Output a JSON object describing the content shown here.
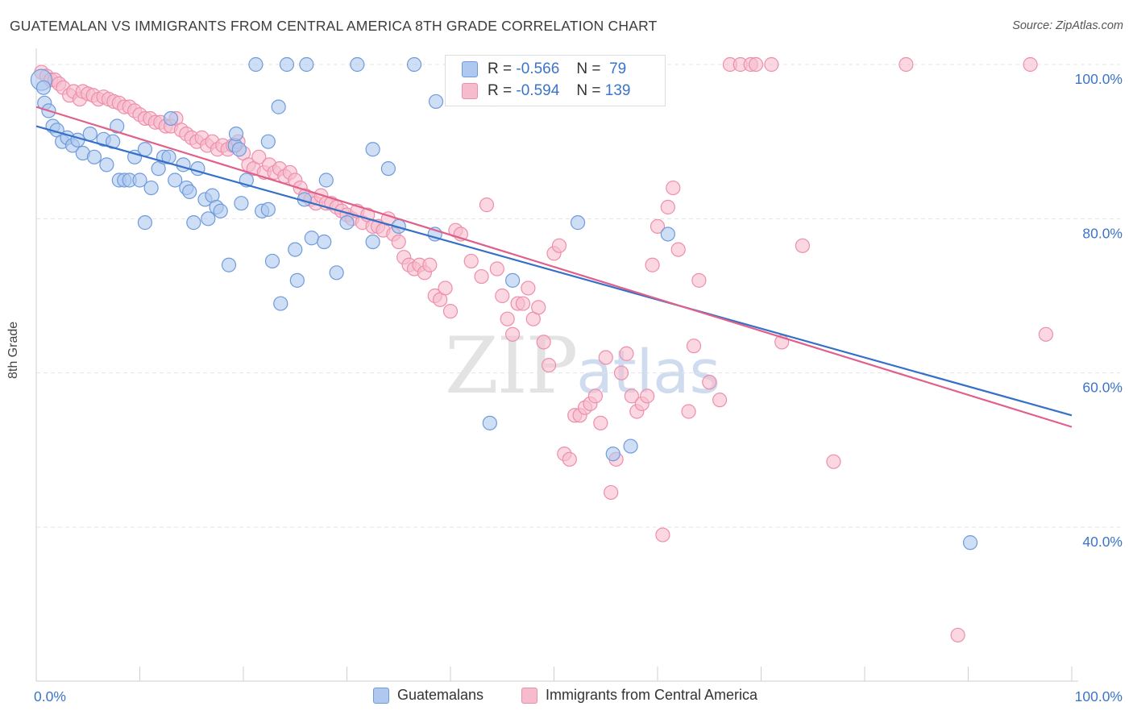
{
  "title": "GUATEMALAN VS IMMIGRANTS FROM CENTRAL AMERICA 8TH GRADE CORRELATION CHART",
  "source": "Source: ZipAtlas.com",
  "watermark_zip": "ZIP",
  "watermark_atlas": "atlas",
  "legend": {
    "r_label": "R =",
    "n_label": "N =",
    "series": [
      {
        "r": "-0.566",
        "n": "79"
      },
      {
        "r": "-0.594",
        "n": "139"
      }
    ]
  },
  "bottom_legend": [
    "Guatemalans",
    "Immigrants from Central America"
  ],
  "colors": {
    "blue_fill": "#aec8ef",
    "blue_stroke": "#6f9bdc",
    "blue_line": "#3470c8",
    "pink_fill": "#f6bccd",
    "pink_stroke": "#ee8eab",
    "pink_line": "#e0608a",
    "tick_text": "#3b74c8"
  },
  "chart_data": {
    "type": "scatter",
    "title": "GUATEMALAN VS IMMIGRANTS FROM CENTRAL AMERICA 8TH GRADE CORRELATION CHART",
    "xlabel": "",
    "ylabel": "8th Grade",
    "xlim": [
      0,
      100
    ],
    "ylim": [
      20,
      104
    ],
    "x_tick_labels": [
      "0.0%",
      "100.0%"
    ],
    "y_ticks": [
      40,
      60,
      80,
      100
    ],
    "y_tick_labels": [
      "40.0%",
      "60.0%",
      "80.0%",
      "100.0%"
    ],
    "grid": true,
    "series": [
      {
        "name": "Guatemalans",
        "points": [
          [
            0.5,
            98
          ],
          [
            0.7,
            97
          ],
          [
            0.8,
            95
          ],
          [
            1.2,
            94
          ],
          [
            1.6,
            92
          ],
          [
            2.0,
            91.5
          ],
          [
            2.5,
            90
          ],
          [
            3.0,
            90.5
          ],
          [
            3.5,
            89.5
          ],
          [
            4.0,
            90.2
          ],
          [
            4.5,
            88.5
          ],
          [
            5.2,
            91
          ],
          [
            5.6,
            88
          ],
          [
            6.5,
            90.3
          ],
          [
            6.8,
            87
          ],
          [
            7.4,
            90
          ],
          [
            7.8,
            92
          ],
          [
            8.0,
            85
          ],
          [
            8.5,
            85
          ],
          [
            9.0,
            85
          ],
          [
            9.5,
            88
          ],
          [
            10,
            85
          ],
          [
            10.5,
            89
          ],
          [
            10.5,
            79.5
          ],
          [
            11.1,
            84
          ],
          [
            11.8,
            86.5
          ],
          [
            12.3,
            88
          ],
          [
            12.8,
            88
          ],
          [
            13,
            93
          ],
          [
            13.4,
            85
          ],
          [
            14.2,
            87
          ],
          [
            14.5,
            84
          ],
          [
            14.8,
            83.5
          ],
          [
            15.2,
            79.5
          ],
          [
            15.6,
            86.5
          ],
          [
            16.3,
            82.5
          ],
          [
            16.6,
            80
          ],
          [
            17,
            83
          ],
          [
            17.4,
            81.5
          ],
          [
            17.8,
            81
          ],
          [
            18.6,
            74
          ],
          [
            19.2,
            89.5
          ],
          [
            19.6,
            89
          ],
          [
            19.3,
            91
          ],
          [
            19.8,
            82
          ],
          [
            20.3,
            85
          ],
          [
            21.2,
            100
          ],
          [
            21.8,
            81
          ],
          [
            22.4,
            81.2
          ],
          [
            22.4,
            90
          ],
          [
            22.8,
            74.5
          ],
          [
            23.4,
            94.5
          ],
          [
            23.6,
            69
          ],
          [
            24.2,
            100
          ],
          [
            25,
            76
          ],
          [
            25.2,
            72
          ],
          [
            25.9,
            82.5
          ],
          [
            26.1,
            100
          ],
          [
            26.6,
            77.5
          ],
          [
            27.8,
            77
          ],
          [
            28,
            85
          ],
          [
            29,
            73
          ],
          [
            30,
            79.5
          ],
          [
            31,
            100
          ],
          [
            32.5,
            77
          ],
          [
            32.5,
            89
          ],
          [
            34,
            86.5
          ],
          [
            35,
            79
          ],
          [
            36.5,
            100
          ],
          [
            38.5,
            78
          ],
          [
            38.6,
            95.2
          ],
          [
            43.8,
            53.5
          ],
          [
            44,
            95.5
          ],
          [
            46,
            72
          ],
          [
            52.3,
            79.5
          ],
          [
            55.7,
            49.5
          ],
          [
            57.4,
            50.5
          ],
          [
            61,
            78
          ],
          [
            90.2,
            38
          ]
        ]
      },
      {
        "name": "Immigrants from Central America",
        "points": [
          [
            0.5,
            99
          ],
          [
            1.0,
            98.5
          ],
          [
            1.4,
            98
          ],
          [
            1.8,
            98
          ],
          [
            2.2,
            97.5
          ],
          [
            2.6,
            97
          ],
          [
            3.2,
            96
          ],
          [
            3.6,
            96.5
          ],
          [
            4.2,
            95.5
          ],
          [
            4.5,
            96.5
          ],
          [
            5.0,
            96.2
          ],
          [
            5.5,
            96
          ],
          [
            6.0,
            95.5
          ],
          [
            6.5,
            95.8
          ],
          [
            7.0,
            95.5
          ],
          [
            7.5,
            95.2
          ],
          [
            8.0,
            95
          ],
          [
            8.5,
            94.5
          ],
          [
            9.0,
            94.5
          ],
          [
            9.5,
            94
          ],
          [
            10.0,
            93.5
          ],
          [
            10.5,
            93
          ],
          [
            11.0,
            93
          ],
          [
            11.5,
            92.5
          ],
          [
            12.0,
            92.5
          ],
          [
            12.5,
            92
          ],
          [
            13.0,
            92
          ],
          [
            13.5,
            93
          ],
          [
            14.0,
            91.5
          ],
          [
            14.5,
            91
          ],
          [
            15.0,
            90.5
          ],
          [
            15.5,
            90
          ],
          [
            16.0,
            90.5
          ],
          [
            16.5,
            89.5
          ],
          [
            17.0,
            90
          ],
          [
            17.5,
            89
          ],
          [
            18.0,
            89.5
          ],
          [
            18.5,
            89
          ],
          [
            19.0,
            89.5
          ],
          [
            19.5,
            90
          ],
          [
            20.0,
            88.5
          ],
          [
            20.5,
            87
          ],
          [
            21.0,
            86.5
          ],
          [
            21.5,
            88
          ],
          [
            22.0,
            86
          ],
          [
            22.5,
            87
          ],
          [
            23.0,
            86
          ],
          [
            23.5,
            86.5
          ],
          [
            24.0,
            85.5
          ],
          [
            24.5,
            86
          ],
          [
            25.0,
            85
          ],
          [
            25.5,
            84
          ],
          [
            26.0,
            83
          ],
          [
            26.5,
            82.5
          ],
          [
            27.0,
            82
          ],
          [
            27.5,
            83
          ],
          [
            28.0,
            82
          ],
          [
            28.5,
            82
          ],
          [
            29.0,
            81.5
          ],
          [
            29.5,
            81
          ],
          [
            30.0,
            80.5
          ],
          [
            30.5,
            80
          ],
          [
            31.0,
            81
          ],
          [
            31.5,
            79.5
          ],
          [
            32.0,
            80.5
          ],
          [
            32.5,
            79
          ],
          [
            33.0,
            79
          ],
          [
            33.5,
            78.5
          ],
          [
            34.0,
            80
          ],
          [
            34.5,
            78
          ],
          [
            35.0,
            77
          ],
          [
            35.5,
            75
          ],
          [
            36.0,
            74
          ],
          [
            36.5,
            73.5
          ],
          [
            37.0,
            74
          ],
          [
            37.5,
            73
          ],
          [
            38.0,
            74
          ],
          [
            38.5,
            70
          ],
          [
            39.0,
            69.5
          ],
          [
            39.5,
            71
          ],
          [
            40.0,
            68
          ],
          [
            40.5,
            78.5
          ],
          [
            41.0,
            78
          ],
          [
            42.0,
            74.5
          ],
          [
            43.0,
            72.5
          ],
          [
            43.5,
            81.8
          ],
          [
            44.5,
            73.5
          ],
          [
            45.0,
            70
          ],
          [
            45.5,
            67
          ],
          [
            46.0,
            65
          ],
          [
            46.5,
            69
          ],
          [
            47.0,
            69
          ],
          [
            47.5,
            71
          ],
          [
            48.0,
            67
          ],
          [
            48.5,
            68.5
          ],
          [
            49.0,
            64
          ],
          [
            49.5,
            61
          ],
          [
            50.0,
            75.5
          ],
          [
            50.5,
            76.5
          ],
          [
            51.0,
            49.5
          ],
          [
            51.5,
            48.8
          ],
          [
            52.0,
            54.5
          ],
          [
            52.5,
            54.5
          ],
          [
            53.0,
            55.5
          ],
          [
            53.5,
            56
          ],
          [
            54.0,
            57
          ],
          [
            54.5,
            53.5
          ],
          [
            55.0,
            62
          ],
          [
            55.5,
            44.5
          ],
          [
            56.0,
            48.8
          ],
          [
            56.5,
            60
          ],
          [
            57.0,
            62.5
          ],
          [
            57.5,
            57
          ],
          [
            58.0,
            55
          ],
          [
            58.5,
            56
          ],
          [
            59.0,
            57
          ],
          [
            59.5,
            74
          ],
          [
            60.0,
            79
          ],
          [
            60.5,
            39
          ],
          [
            61.0,
            81.5
          ],
          [
            61.5,
            84
          ],
          [
            62.0,
            76
          ],
          [
            63.0,
            55
          ],
          [
            63.5,
            63.5
          ],
          [
            64.0,
            72
          ],
          [
            65.0,
            58.8
          ],
          [
            66.0,
            56.5
          ],
          [
            67.0,
            100
          ],
          [
            68.0,
            100
          ],
          [
            69.0,
            100
          ],
          [
            69.5,
            100
          ],
          [
            71.0,
            100
          ],
          [
            72.0,
            64
          ],
          [
            74.0,
            76.5
          ],
          [
            77.0,
            48.5
          ],
          [
            84.0,
            100
          ],
          [
            89.0,
            26
          ],
          [
            96.0,
            100
          ],
          [
            97.5,
            65
          ]
        ]
      }
    ],
    "trendlines": [
      {
        "name": "Guatemalans",
        "x": [
          0,
          100
        ],
        "y": [
          92,
          54.5
        ]
      },
      {
        "name": "Immigrants from Central America",
        "x": [
          0,
          100
        ],
        "y": [
          94.5,
          53
        ]
      }
    ]
  }
}
